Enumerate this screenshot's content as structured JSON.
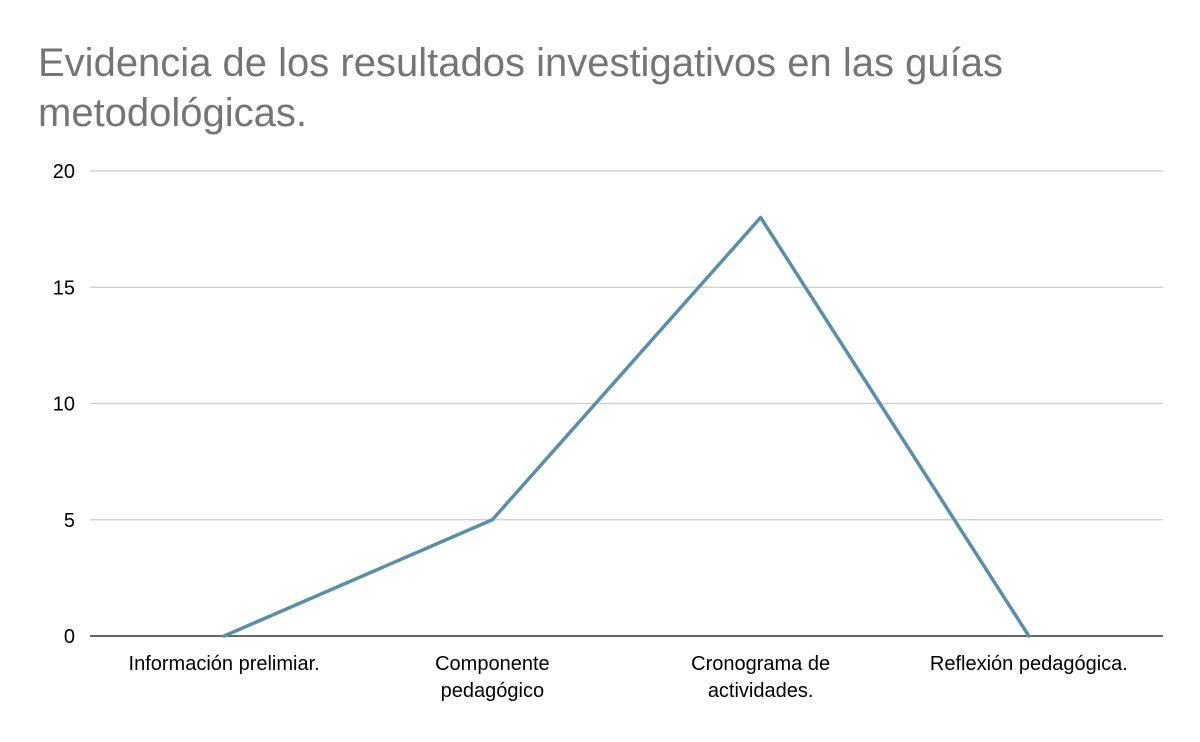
{
  "chart_data": {
    "type": "line",
    "title": "Evidencia de los resultados investigativos en las guías metodológicas.",
    "categories": [
      [
        "Información prelimiar."
      ],
      [
        "Componente",
        "pedagógico"
      ],
      [
        "Cronograma de",
        "actividades."
      ],
      [
        "Reflexión pedagógica."
      ]
    ],
    "series": [
      {
        "values": [
          0,
          5,
          18,
          0
        ],
        "color": "#5b8fa8"
      }
    ],
    "y_ticks": [
      "0",
      "5",
      "10",
      "15",
      "20"
    ],
    "ylim": [
      0,
      20
    ],
    "grid": true,
    "xlabel": "",
    "ylabel": ""
  }
}
